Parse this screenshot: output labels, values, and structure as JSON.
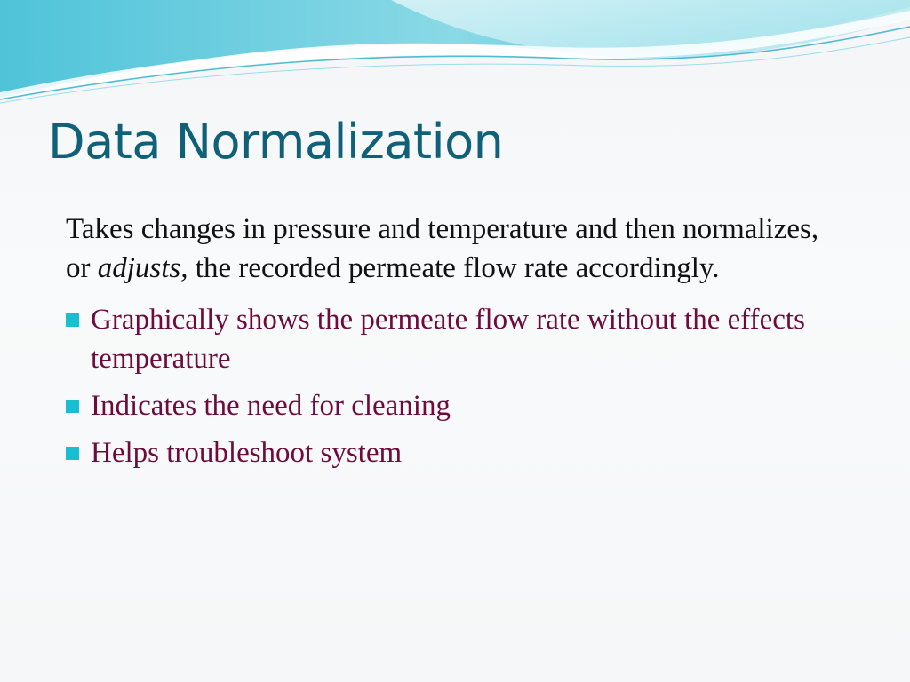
{
  "slide": {
    "title": "Data Normalization",
    "intro": {
      "text_before": "Takes changes in pressure and temperature and then normalizes, or ",
      "emphasis": "adjusts,",
      "text_after": " the recorded permeate flow rate accordingly."
    },
    "bullets": [
      "Graphically shows the permeate flow rate without the effects temperature",
      "Indicates the need for cleaning",
      "Helps troubleshoot system"
    ]
  },
  "colors": {
    "title": "#0f6078",
    "intro_text": "#111111",
    "bullet_text": "#6e0a3c",
    "bullet_marker": "#17bfd0",
    "wave_light": "#bfe9f0",
    "wave_mid": "#5ccfe0",
    "wave_dark": "#1aa8c4"
  }
}
